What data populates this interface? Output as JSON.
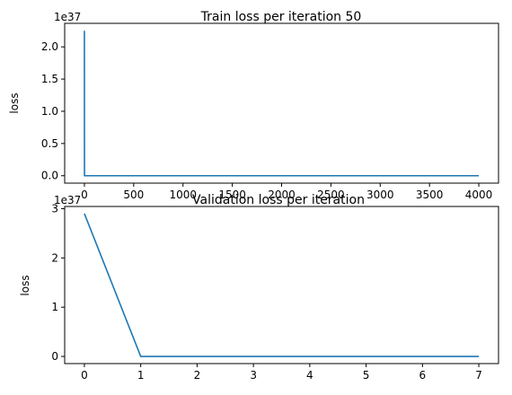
{
  "chart_data": [
    {
      "type": "line",
      "title": "Train loss per iteration 50",
      "xlabel": "",
      "ylabel": "loss",
      "offset_text": "1e37",
      "xlim": [
        -200,
        4200
      ],
      "ylim": [
        -0.115,
        2.365
      ],
      "xticks": [
        0,
        500,
        1000,
        1500,
        2000,
        2500,
        3000,
        3500,
        4000
      ],
      "xtick_labels": [
        "0",
        "500",
        "1000",
        "1500",
        "2000",
        "2500",
        "3000",
        "3500",
        "4000"
      ],
      "yticks": [
        0,
        0.5,
        1.0,
        1.5,
        2.0
      ],
      "ytick_labels": [
        "0.0",
        "0.5",
        "1.0",
        "1.5",
        "2.0"
      ],
      "grid": false,
      "series": [
        {
          "color": "#1f77b4",
          "x": [
            0,
            1,
            50,
            4000
          ],
          "y": [
            2.25,
            0,
            0,
            0
          ]
        }
      ]
    },
    {
      "type": "line",
      "title": "Validation loss per iteration",
      "xlabel": "",
      "ylabel": "loss",
      "offset_text": "1e37",
      "xlim": [
        -0.35,
        7.35
      ],
      "ylim": [
        -0.145,
        3.045
      ],
      "xticks": [
        0,
        1,
        2,
        3,
        4,
        5,
        6,
        7
      ],
      "xtick_labels": [
        "0",
        "1",
        "2",
        "3",
        "4",
        "5",
        "6",
        "7"
      ],
      "yticks": [
        0,
        1,
        2,
        3
      ],
      "ytick_labels": [
        "0",
        "1",
        "2",
        "3"
      ],
      "grid": false,
      "series": [
        {
          "color": "#1f77b4",
          "x": [
            0,
            1,
            2,
            3,
            4,
            5,
            6,
            7
          ],
          "y": [
            2.9,
            0,
            0,
            0,
            0,
            0,
            0,
            0
          ]
        }
      ]
    }
  ]
}
